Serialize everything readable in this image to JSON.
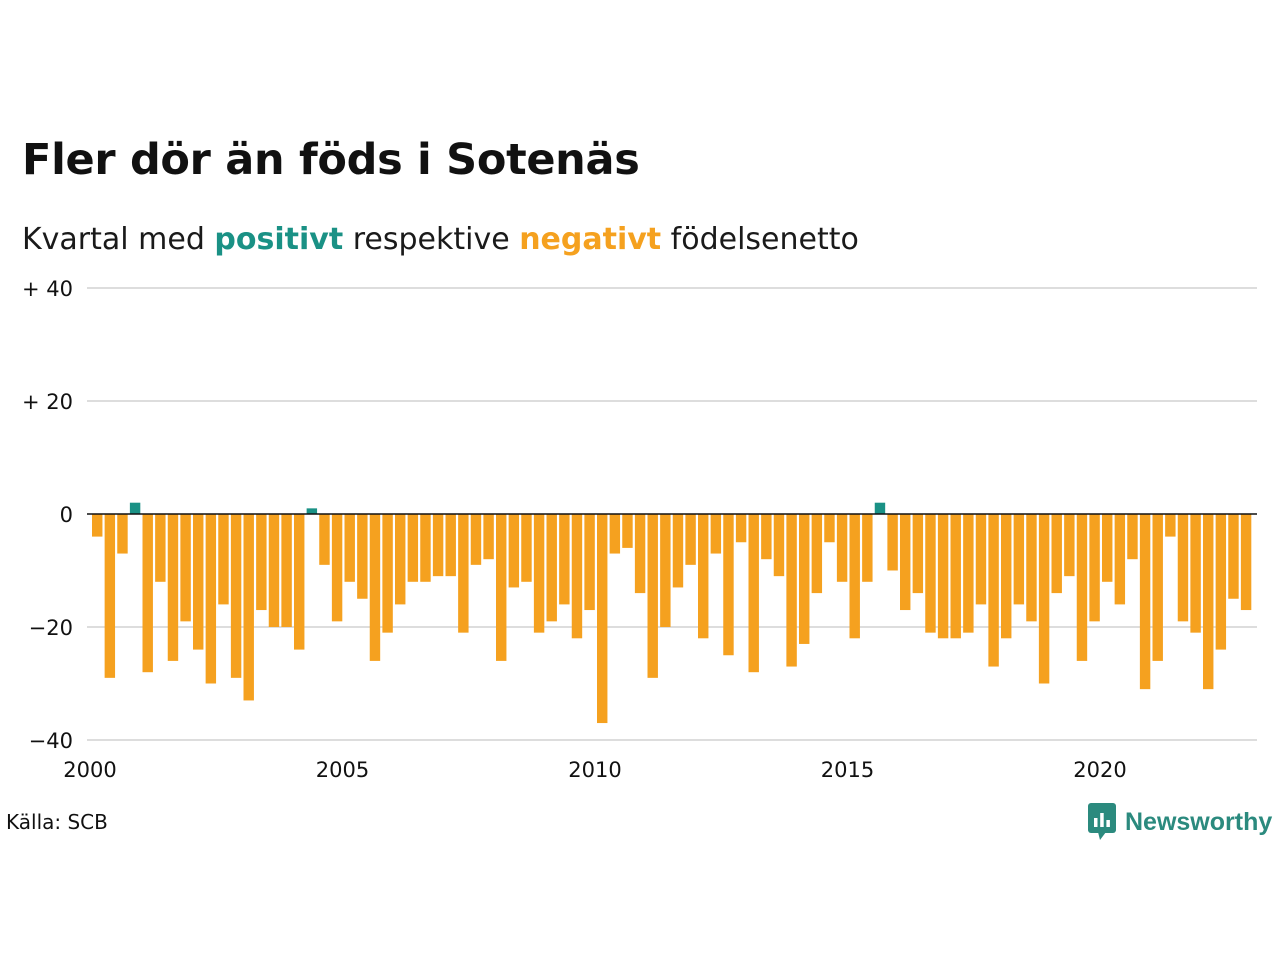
{
  "title": "Fler dör än föds i Sotenäs",
  "subtitle": {
    "prefix": "Kvartal med ",
    "positive_word": "positivt",
    "middle": " respektive ",
    "negative_word": "negativt",
    "suffix": " födelsenetto"
  },
  "source": "Källa: SCB",
  "brand": {
    "name": "Newsworthy",
    "icon": "newsworthy-logo-icon",
    "color": "#2b8a7e"
  },
  "colors": {
    "positive": "#1a9185",
    "negative": "#f5a11f",
    "grid": "#dddddd",
    "zero_line": "#111111"
  },
  "chart_data": {
    "type": "bar",
    "title": "Fler dör än föds i Sotenäs",
    "subtitle": "Kvartal med positivt respektive negativt födelsenetto",
    "xlabel": "",
    "ylabel": "",
    "start_year": 2000,
    "periods_per_year": 4,
    "x_ticks": [
      "2000",
      "2005",
      "2010",
      "2015",
      "2020"
    ],
    "y_ticks": [
      {
        "value": 40,
        "label": "+ 40"
      },
      {
        "value": 20,
        "label": "+ 20"
      },
      {
        "value": 0,
        "label": "0"
      },
      {
        "value": -20,
        "label": "−20"
      },
      {
        "value": -40,
        "label": "−40"
      }
    ],
    "ylim": [
      -40,
      40
    ],
    "xlim": [
      2000,
      2023
    ],
    "grid": true,
    "legend": "none",
    "series": [
      {
        "name": "födelsenetto",
        "values": [
          -4,
          -29,
          -7,
          2,
          -28,
          -12,
          -26,
          -19,
          -24,
          -30,
          -16,
          -29,
          -33,
          -17,
          -20,
          -20,
          -24,
          1,
          -9,
          -19,
          -12,
          -15,
          -26,
          -21,
          -16,
          -12,
          -12,
          -11,
          -11,
          -21,
          -9,
          -8,
          -26,
          -13,
          -12,
          -21,
          -19,
          -16,
          -22,
          -17,
          -37,
          -7,
          -6,
          -14,
          -29,
          -20,
          -13,
          -9,
          -22,
          -7,
          -25,
          -5,
          -28,
          -8,
          -11,
          -27,
          -23,
          -14,
          -5,
          -12,
          -22,
          -12,
          2,
          -10,
          -17,
          -14,
          -21,
          -22,
          -22,
          -21,
          -16,
          -27,
          -22,
          -16,
          -19,
          -30,
          -14,
          -11,
          -26,
          -19,
          -12,
          -16,
          -8,
          -31,
          -26,
          -4,
          -19,
          -21,
          -31,
          -24,
          -15,
          -17
        ]
      }
    ]
  }
}
